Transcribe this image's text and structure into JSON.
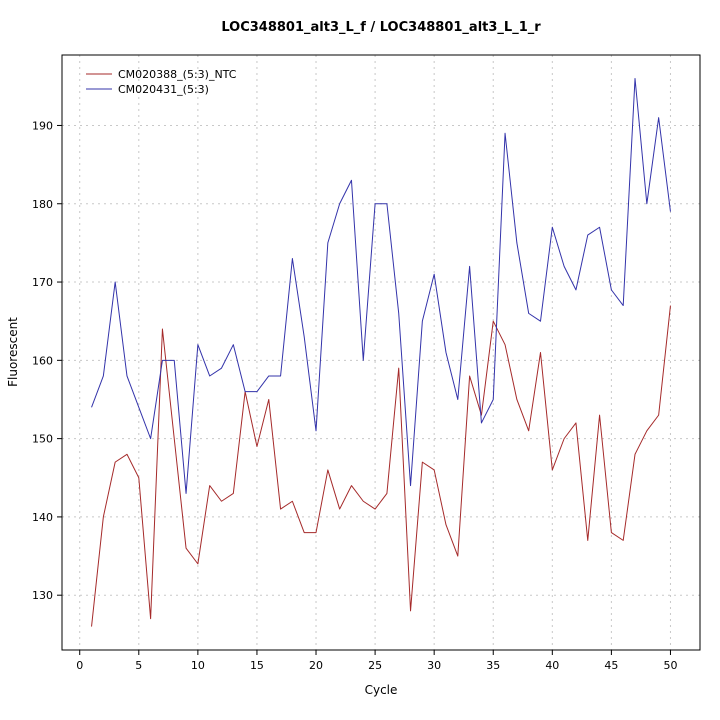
{
  "chart_data": {
    "type": "line",
    "title": "LOC348801_alt3_L_f / LOC348801_alt3_L_1_r",
    "xlabel": "Cycle",
    "ylabel": "Fluorescent",
    "xlim": [
      -1.5,
      52.5
    ],
    "ylim": [
      123,
      199
    ],
    "x_ticks": [
      0,
      5,
      10,
      15,
      20,
      25,
      30,
      35,
      40,
      45,
      50
    ],
    "y_ticks": [
      130,
      140,
      150,
      160,
      170,
      180,
      190
    ],
    "grid": true,
    "grid_color": "#c8c8c8",
    "legend_position": "top-left",
    "box_color": "#000000",
    "x": [
      1,
      2,
      3,
      4,
      5,
      6,
      7,
      8,
      9,
      10,
      11,
      12,
      13,
      14,
      15,
      16,
      17,
      18,
      19,
      20,
      21,
      22,
      23,
      24,
      25,
      26,
      27,
      28,
      29,
      30,
      31,
      32,
      33,
      34,
      35,
      36,
      37,
      38,
      39,
      40,
      41,
      42,
      43,
      44,
      45,
      46,
      47,
      48,
      49,
      50
    ],
    "series": [
      {
        "name": "CM020388_(5:3)_NTC",
        "color": "#a52a2a",
        "values": [
          126,
          140,
          147,
          148,
          145,
          127,
          164,
          150,
          136,
          134,
          144,
          142,
          143,
          156,
          149,
          155,
          141,
          142,
          138,
          138,
          146,
          141,
          144,
          142,
          141,
          143,
          159,
          128,
          147,
          146,
          139,
          135,
          158,
          153,
          165,
          162,
          155,
          151,
          161,
          146,
          150,
          152,
          137,
          153,
          138,
          137,
          148,
          151,
          153,
          167
        ]
      },
      {
        "name": "CM020431_(5:3)",
        "color": "#3333aa",
        "values": [
          154,
          158,
          170,
          158,
          154,
          150,
          160,
          160,
          143,
          162,
          158,
          159,
          162,
          156,
          156,
          158,
          158,
          173,
          163,
          151,
          175,
          180,
          183,
          160,
          180,
          180,
          166,
          144,
          165,
          171,
          161,
          155,
          172,
          152,
          155,
          189,
          175,
          166,
          165,
          177,
          172,
          169,
          176,
          177,
          169,
          167,
          196,
          180,
          191,
          179
        ]
      }
    ]
  }
}
